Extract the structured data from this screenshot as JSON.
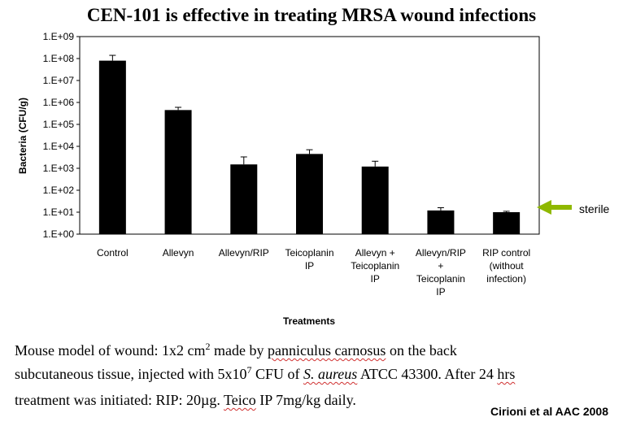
{
  "title": "CEN-101 is effective in treating MRSA wound infections",
  "chart_data": {
    "type": "bar",
    "categories": [
      [
        "Control"
      ],
      [
        "Allevyn"
      ],
      [
        "Allevyn/RIP"
      ],
      [
        "Teicoplanin",
        "IP"
      ],
      [
        "Allevyn +",
        "Teicoplanin",
        "IP"
      ],
      [
        "Allevyn/RIP",
        "+",
        "Teicoplanin",
        "IP"
      ],
      [
        "RIP control",
        "(without",
        "infection)"
      ]
    ],
    "values": [
      80000000,
      450000,
      1500,
      4500,
      1200,
      12,
      10
    ],
    "error_upper": [
      140000000,
      600000,
      3300,
      7000,
      2100,
      16,
      11
    ],
    "y_scale": "log",
    "ylim": [
      1,
      1000000000
    ],
    "y_ticks": [
      "1.E+00",
      "1.E+01",
      "1.E+02",
      "1.E+03",
      "1.E+04",
      "1.E+05",
      "1.E+06",
      "1.E+07",
      "1.E+08",
      "1.E+09"
    ],
    "xlabel": "Treatments",
    "ylabel": "Bacteria (CFU/g)",
    "bar_color": "#000000",
    "annotation": {
      "label": "sterile",
      "arrow_color": "#8fb800",
      "value": 10
    }
  },
  "caption": {
    "line1_a": "Mouse model of wound: 1x2 cm",
    "line1_sup": "2",
    "line1_b": " made by ",
    "line1_c": "panniculus carnosus",
    "line1_d": " on the back",
    "line2_a": "subcutaneous tissue, injected with 5x10",
    "line2_sup": "7",
    "line2_b": " CFU of ",
    "line2_c": "S. aureus",
    "line2_d": " ATCC  43300. After 24 ",
    "line2_e": "hrs",
    "line3_a": "treatment was initiated: RIP: 20µg. ",
    "line3_b": "Teico",
    "line3_c": " IP 7mg/kg daily."
  },
  "citation": "Cirioni  et al AAC 2008"
}
